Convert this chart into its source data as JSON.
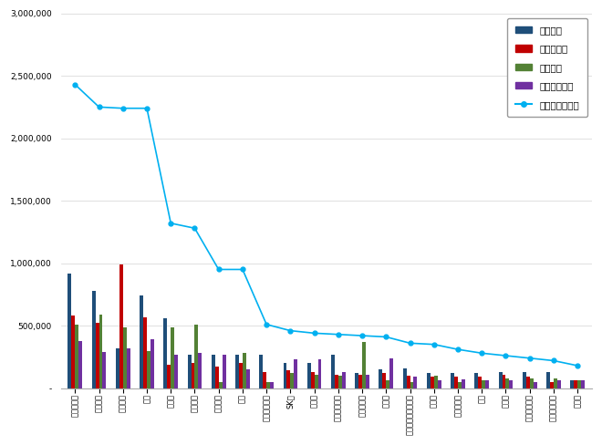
{
  "categories": [
    "힙스테이트",
    "푸르지오",
    "아이파크",
    "자이",
    "래미안",
    "롯데캐슬",
    "디에이치",
    "더샕",
    "서희스타힙스",
    "SK뷰",
    "우미린",
    "호반베르디움",
    "한라비발디",
    "하늘쉡",
    "내외주건아남아파트",
    "포레나",
    "선도브랜드",
    "우방",
    "구아무",
    "린스트라우스",
    "평산브로스음",
    "스위쫘"
  ],
  "participation": [
    920000,
    780000,
    320000,
    740000,
    560000,
    270000,
    270000,
    270000,
    270000,
    200000,
    200000,
    270000,
    120000,
    150000,
    160000,
    120000,
    120000,
    120000,
    130000,
    130000,
    130000,
    60000
  ],
  "media": [
    580000,
    520000,
    990000,
    570000,
    190000,
    200000,
    170000,
    200000,
    130000,
    140000,
    130000,
    110000,
    110000,
    120000,
    100000,
    90000,
    90000,
    90000,
    110000,
    90000,
    50000,
    60000
  ],
  "communication": [
    510000,
    590000,
    490000,
    300000,
    490000,
    510000,
    50000,
    280000,
    50000,
    120000,
    110000,
    100000,
    370000,
    60000,
    50000,
    100000,
    50000,
    60000,
    80000,
    80000,
    80000,
    60000
  ],
  "community": [
    380000,
    290000,
    320000,
    390000,
    270000,
    280000,
    270000,
    150000,
    50000,
    230000,
    230000,
    130000,
    110000,
    240000,
    90000,
    60000,
    70000,
    60000,
    60000,
    50000,
    60000,
    60000
  ],
  "brand_reputation": [
    2430000,
    2250000,
    2240000,
    2240000,
    1320000,
    1280000,
    950000,
    950000,
    510000,
    460000,
    440000,
    430000,
    420000,
    410000,
    360000,
    350000,
    310000,
    280000,
    260000,
    240000,
    220000,
    180000
  ],
  "bar_colors": [
    "#1f4e79",
    "#c00000",
    "#538135",
    "#7030a0"
  ],
  "line_color": "#00b0f0",
  "legend_labels": [
    "참여지수",
    "미디어지수",
    "소통지수",
    "케뮤니티지수",
    "브랜드평판지수"
  ],
  "ylim": [
    0,
    3000000
  ],
  "yticks": [
    0,
    500000,
    1000000,
    1500000,
    2000000,
    2500000,
    3000000
  ],
  "background_color": "#ffffff",
  "grid_color": "#d3d3d3"
}
